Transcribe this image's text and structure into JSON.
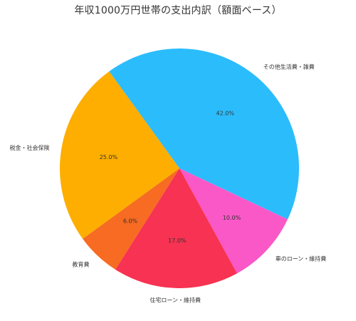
{
  "chart_data": {
    "type": "pie",
    "title": "年収1000万円世帯の支出内訳（額面ベース）",
    "slices": [
      {
        "label": "その他生活費・雑費",
        "value": 42.0,
        "pct_label": "42.0%",
        "color": "#2bbcfc"
      },
      {
        "label": "車のローン・維持費",
        "value": 10.0,
        "pct_label": "10.0%",
        "color": "#fa58c7"
      },
      {
        "label": "住宅ローン・維持費",
        "value": 17.0,
        "pct_label": "17.0%",
        "color": "#f73252"
      },
      {
        "label": "教育費",
        "value": 6.0,
        "pct_label": "6.0%",
        "color": "#f76b22"
      },
      {
        "label": "税金・社会保険",
        "value": 25.0,
        "pct_label": "25.0%",
        "color": "#feae00"
      }
    ],
    "start_angle_deg": 126,
    "direction": "clockwise",
    "legend": "none"
  }
}
